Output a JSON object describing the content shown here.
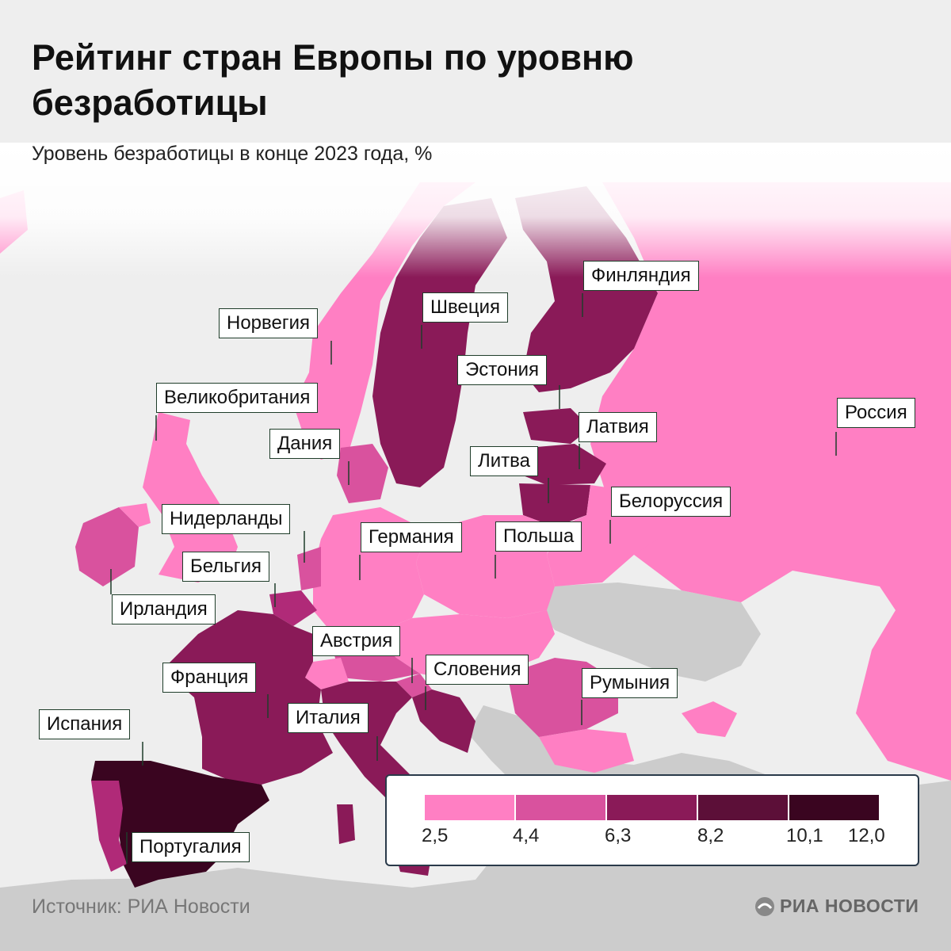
{
  "title": "Рейтинг стран Европы по уровню безработицы",
  "subtitle": "Уровень безработицы в конце 2023 года, %",
  "countries": {
    "russia": "Россия",
    "finland": "Финляндия",
    "sweden": "Швеция",
    "norway": "Норвегия",
    "estonia": "Эстония",
    "latvia": "Латвия",
    "lithuania": "Литва",
    "belarus": "Белоруссия",
    "uk": "Великобритания",
    "denmark": "Дания",
    "netherlands": "Нидерланды",
    "germany": "Германия",
    "poland": "Польша",
    "belgium": "Бельгия",
    "ireland": "Ирландия",
    "austria": "Австрия",
    "slovenia": "Словения",
    "romania": "Румыния",
    "france": "Франция",
    "italy": "Италия",
    "spain": "Испания",
    "portugal": "Португалия"
  },
  "legend": {
    "ticks": [
      "2,5",
      "4,4",
      "6,3",
      "8,2",
      "10,1",
      "12,0"
    ],
    "colors": [
      "#ff7fc3",
      "#d9529e",
      "#b02a78",
      "#8a1a58",
      "#5c0f38",
      "#3a0520"
    ]
  },
  "footer": {
    "source": "Источник: РИА Новости",
    "brand": "РИА НОВОСТИ"
  },
  "colors": {
    "sea": "#eeeeee",
    "no_data_land": "#cccccc",
    "fill_1": "#ff7fc3",
    "fill_2": "#d9529e",
    "fill_3": "#b02a78",
    "fill_4": "#8a1a58",
    "fill_5": "#5c0f38",
    "fill_6": "#3a0520"
  }
}
